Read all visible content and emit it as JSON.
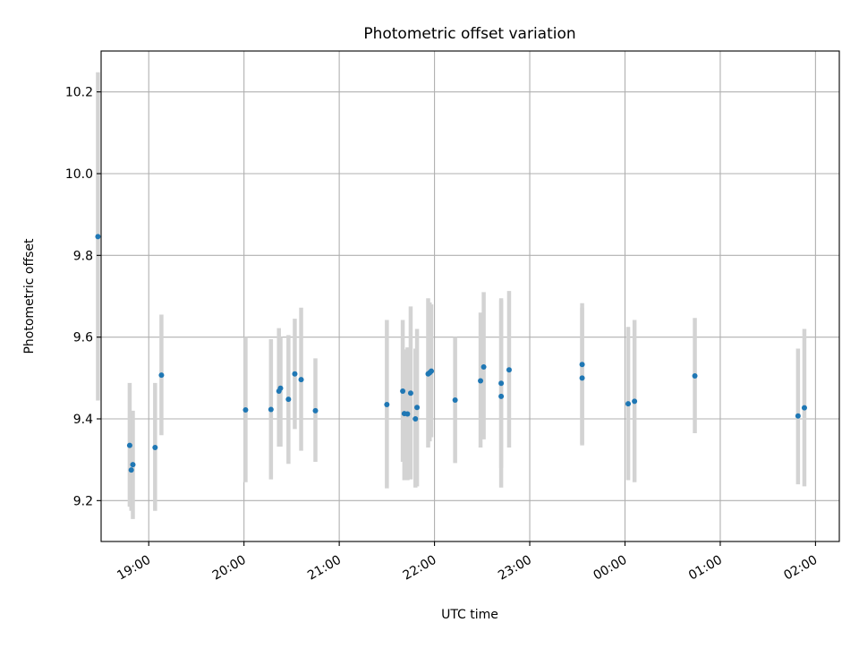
{
  "chart_data": {
    "type": "scatter",
    "title": "Photometric offset variation",
    "xlabel": "UTC time",
    "ylabel": "Photometric offset",
    "x_unit": "UTC clock time",
    "x_range": [
      "18:30",
      "02:15"
    ],
    "ylim": [
      9.1,
      10.3
    ],
    "grid": true,
    "x_tick_labels": [
      "19:00",
      "20:00",
      "21:00",
      "22:00",
      "23:00",
      "00:00",
      "01:00",
      "02:00"
    ],
    "y_ticks": [
      "9.2",
      "9.4",
      "9.6",
      "9.8",
      "10.0",
      "10.2"
    ],
    "colors": {
      "point": "#1f77b4",
      "errorbar": "#d3d3d3",
      "grid": "#b0b0b0"
    },
    "points": [
      {
        "t": "18:28",
        "y": 9.846,
        "lo": 9.445,
        "hi": 10.248
      },
      {
        "t": "18:48",
        "y": 9.335,
        "lo": 9.185,
        "hi": 9.488
      },
      {
        "t": "18:49",
        "y": 9.275,
        "lo": 9.175,
        "hi": 9.4
      },
      {
        "t": "18:50",
        "y": 9.288,
        "lo": 9.155,
        "hi": 9.42
      },
      {
        "t": "19:04",
        "y": 9.33,
        "lo": 9.175,
        "hi": 9.488
      },
      {
        "t": "19:08",
        "y": 9.507,
        "lo": 9.36,
        "hi": 9.655
      },
      {
        "t": "20:01",
        "y": 9.422,
        "lo": 9.245,
        "hi": 9.6
      },
      {
        "t": "20:17",
        "y": 9.423,
        "lo": 9.252,
        "hi": 9.595
      },
      {
        "t": "20:22",
        "y": 9.468,
        "lo": 9.332,
        "hi": 9.622
      },
      {
        "t": "20:23",
        "y": 9.475,
        "lo": 9.332,
        "hi": 9.6
      },
      {
        "t": "20:28",
        "y": 9.448,
        "lo": 9.29,
        "hi": 9.605
      },
      {
        "t": "20:32",
        "y": 9.51,
        "lo": 9.375,
        "hi": 9.645
      },
      {
        "t": "20:36",
        "y": 9.496,
        "lo": 9.322,
        "hi": 9.672
      },
      {
        "t": "20:45",
        "y": 9.42,
        "lo": 9.295,
        "hi": 9.548
      },
      {
        "t": "21:30",
        "y": 9.435,
        "lo": 9.23,
        "hi": 9.642
      },
      {
        "t": "21:40",
        "y": 9.468,
        "lo": 9.295,
        "hi": 9.642
      },
      {
        "t": "21:41",
        "y": 9.413,
        "lo": 9.25,
        "hi": 9.57
      },
      {
        "t": "21:43",
        "y": 9.412,
        "lo": 9.25,
        "hi": 9.575
      },
      {
        "t": "21:45",
        "y": 9.463,
        "lo": 9.252,
        "hi": 9.675
      },
      {
        "t": "21:48",
        "y": 9.4,
        "lo": 9.232,
        "hi": 9.572
      },
      {
        "t": "21:49",
        "y": 9.428,
        "lo": 9.235,
        "hi": 9.62
      },
      {
        "t": "21:56",
        "y": 9.51,
        "lo": 9.33,
        "hi": 9.695
      },
      {
        "t": "21:57",
        "y": 9.513,
        "lo": 9.345,
        "hi": 9.685
      },
      {
        "t": "21:58",
        "y": 9.517,
        "lo": 9.355,
        "hi": 9.68
      },
      {
        "t": "22:13",
        "y": 9.446,
        "lo": 9.292,
        "hi": 9.6
      },
      {
        "t": "22:29",
        "y": 9.493,
        "lo": 9.33,
        "hi": 9.66
      },
      {
        "t": "22:31",
        "y": 9.527,
        "lo": 9.35,
        "hi": 9.71
      },
      {
        "t": "22:42",
        "y": 9.455,
        "lo": 9.232,
        "hi": 9.69
      },
      {
        "t": "22:42",
        "y": 9.487,
        "lo": 9.28,
        "hi": 9.695
      },
      {
        "t": "22:47",
        "y": 9.52,
        "lo": 9.33,
        "hi": 9.713
      },
      {
        "t": "23:33",
        "y": 9.533,
        "lo": 9.338,
        "hi": 9.683
      },
      {
        "t": "23:33",
        "y": 9.5,
        "lo": 9.335,
        "hi": 9.672
      },
      {
        "t": "00:02",
        "y": 9.437,
        "lo": 9.25,
        "hi": 9.625
      },
      {
        "t": "00:06",
        "y": 9.443,
        "lo": 9.245,
        "hi": 9.642
      },
      {
        "t": "00:44",
        "y": 9.505,
        "lo": 9.365,
        "hi": 9.647
      },
      {
        "t": "01:49",
        "y": 9.407,
        "lo": 9.24,
        "hi": 9.572
      },
      {
        "t": "01:53",
        "y": 9.427,
        "lo": 9.235,
        "hi": 9.62
      }
    ]
  }
}
